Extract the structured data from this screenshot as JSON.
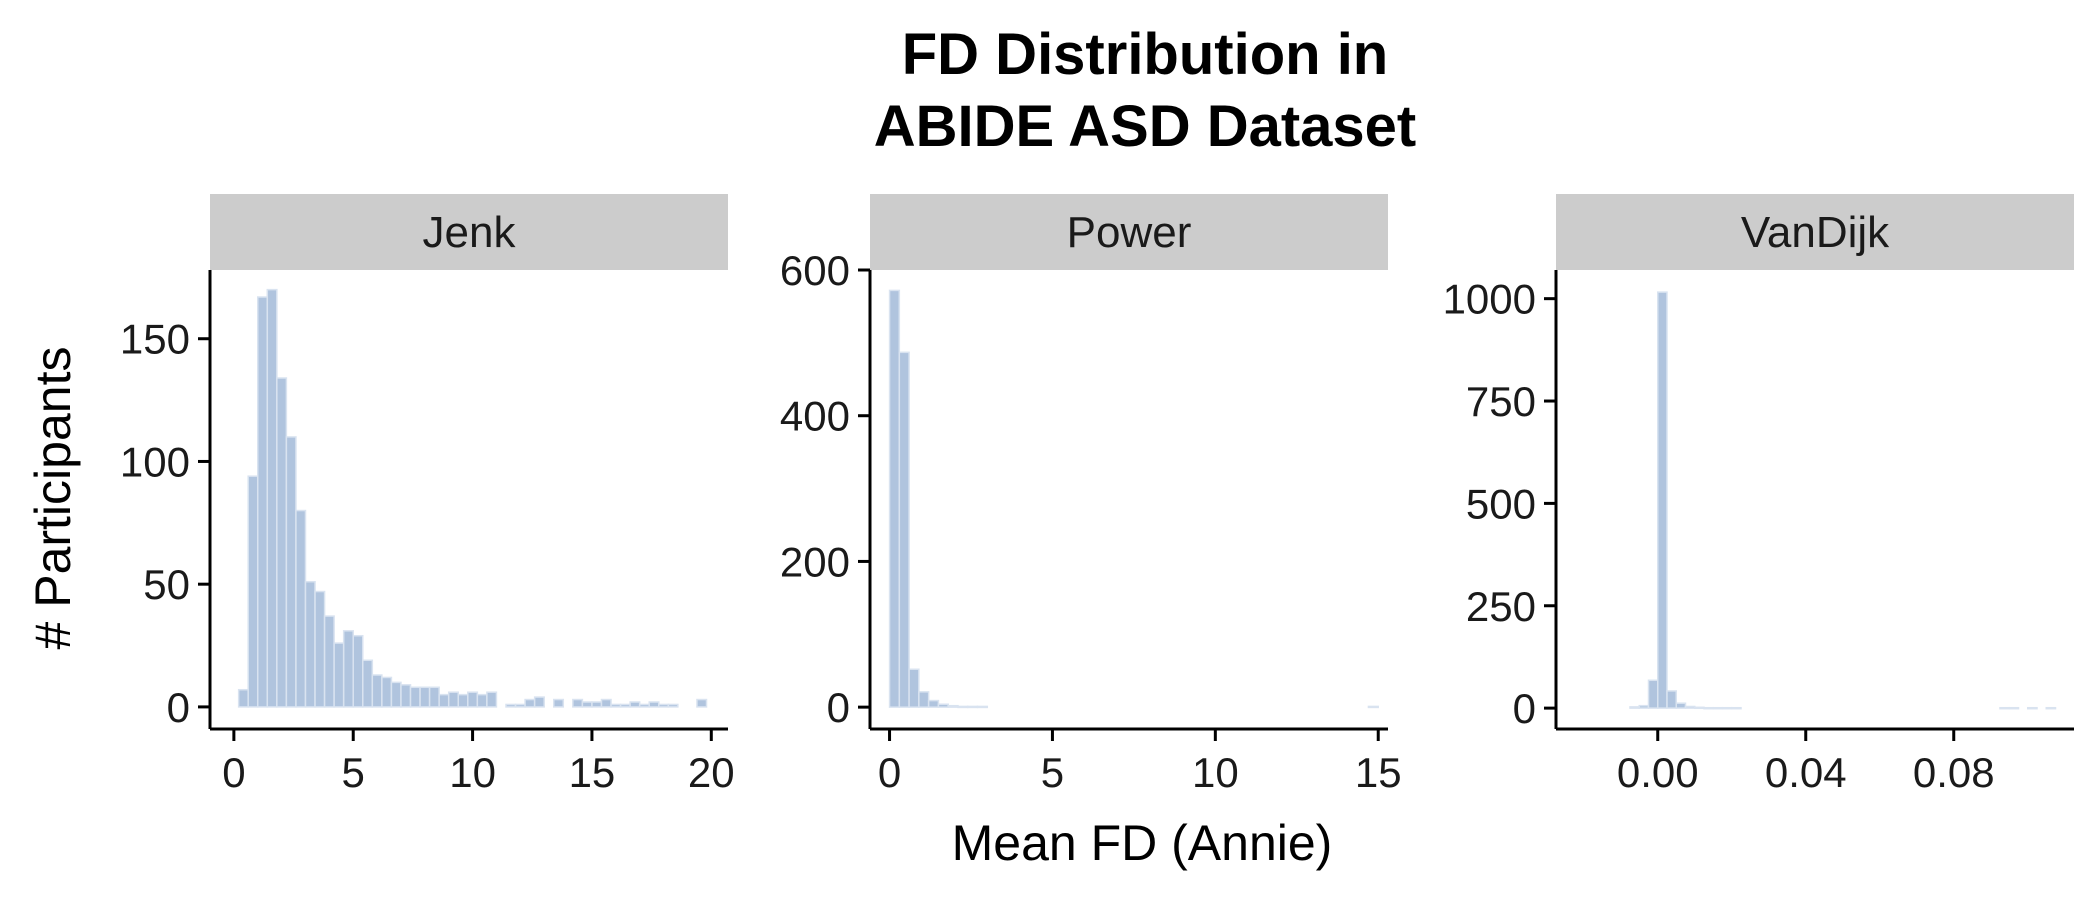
{
  "chart_data": {
    "type": "bar",
    "title_lines": [
      "FD Distribution in",
      "ABIDE ASD Dataset"
    ],
    "xlabel": "Mean FD (Annie)",
    "ylabel": "# Participants",
    "bar_color": "#b0c4de",
    "grid": false,
    "legend": "none",
    "panels": [
      {
        "name": "Jenk",
        "xlim": [
          -1.0,
          20.7
        ],
        "ylim": [
          -9,
          178
        ],
        "xticks": [
          0,
          5,
          10,
          15,
          20
        ],
        "yticks": [
          0,
          50,
          100,
          150
        ],
        "bin_width": 0.4,
        "bins": [
          [
            0.2,
            7
          ],
          [
            0.6,
            94
          ],
          [
            1.0,
            167
          ],
          [
            1.4,
            170
          ],
          [
            1.8,
            134
          ],
          [
            2.2,
            110
          ],
          [
            2.6,
            80
          ],
          [
            3.0,
            51
          ],
          [
            3.4,
            47
          ],
          [
            3.8,
            37
          ],
          [
            4.2,
            26
          ],
          [
            4.6,
            31
          ],
          [
            5.0,
            29
          ],
          [
            5.4,
            19
          ],
          [
            5.8,
            13
          ],
          [
            6.2,
            12
          ],
          [
            6.6,
            10
          ],
          [
            7.0,
            9
          ],
          [
            7.4,
            8
          ],
          [
            7.8,
            8
          ],
          [
            8.2,
            8
          ],
          [
            8.6,
            5
          ],
          [
            9.0,
            6
          ],
          [
            9.4,
            5
          ],
          [
            9.8,
            6
          ],
          [
            10.2,
            5
          ],
          [
            10.6,
            6
          ],
          [
            11.0,
            0
          ],
          [
            11.4,
            1
          ],
          [
            11.8,
            1
          ],
          [
            12.2,
            3
          ],
          [
            12.6,
            4
          ],
          [
            13.0,
            0
          ],
          [
            13.4,
            3
          ],
          [
            13.8,
            0
          ],
          [
            14.2,
            3
          ],
          [
            14.6,
            2
          ],
          [
            15.0,
            2
          ],
          [
            15.4,
            3
          ],
          [
            15.8,
            1
          ],
          [
            16.2,
            1
          ],
          [
            16.6,
            2
          ],
          [
            17.0,
            1
          ],
          [
            17.4,
            2
          ],
          [
            17.8,
            1
          ],
          [
            18.2,
            1
          ],
          [
            18.6,
            0
          ],
          [
            19.0,
            0
          ],
          [
            19.4,
            3
          ]
        ]
      },
      {
        "name": "Power",
        "xlim": [
          -0.6,
          15.3
        ],
        "ylim": [
          -30,
          600
        ],
        "xticks": [
          0,
          5,
          10,
          15
        ],
        "yticks": [
          0,
          200,
          400,
          600
        ],
        "bin_width": 0.3,
        "bins": [
          [
            0.0,
            572
          ],
          [
            0.3,
            487
          ],
          [
            0.6,
            52
          ],
          [
            0.9,
            21
          ],
          [
            1.2,
            9
          ],
          [
            1.5,
            4
          ],
          [
            1.8,
            2
          ],
          [
            2.1,
            1
          ],
          [
            2.4,
            1
          ],
          [
            2.7,
            1
          ],
          [
            14.7,
            1
          ]
        ]
      },
      {
        "name": "VanDijk",
        "xlim": [
          -0.0275,
          0.1125
        ],
        "ylim": [
          -51,
          1070
        ],
        "xticks": [
          0.0,
          0.04,
          0.08
        ],
        "xtick_labels": [
          "0.00",
          "0.04",
          "0.08"
        ],
        "yticks": [
          0,
          250,
          500,
          750,
          1000
        ],
        "bin_width": 0.0025,
        "bins": [
          [
            -0.0125,
            0
          ],
          [
            -0.01,
            0
          ],
          [
            -0.0075,
            3
          ],
          [
            -0.005,
            6
          ],
          [
            -0.0025,
            68
          ],
          [
            0.0,
            1016
          ],
          [
            0.0025,
            42
          ],
          [
            0.005,
            12
          ],
          [
            0.0075,
            4
          ],
          [
            0.01,
            2
          ],
          [
            0.0125,
            1
          ],
          [
            0.015,
            1
          ],
          [
            0.0175,
            1
          ],
          [
            0.02,
            1
          ],
          [
            0.0925,
            1
          ],
          [
            0.095,
            1
          ],
          [
            0.1,
            1
          ],
          [
            0.105,
            1
          ]
        ]
      }
    ]
  }
}
